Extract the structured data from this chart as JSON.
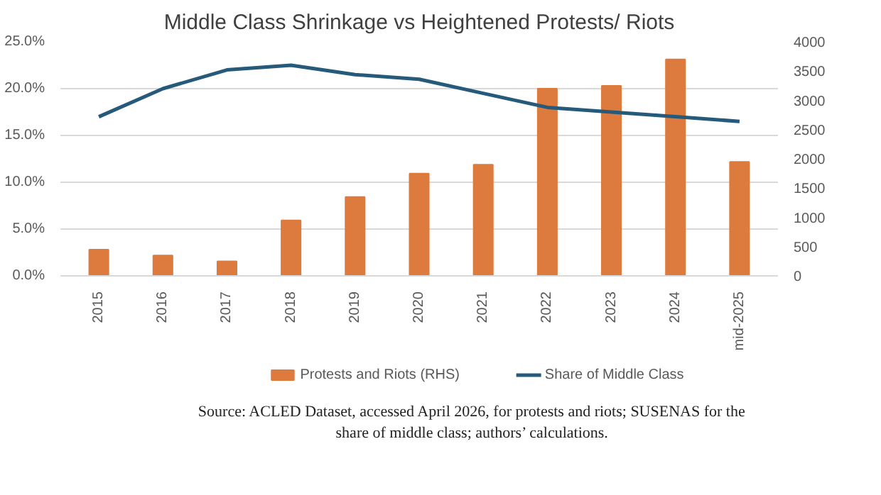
{
  "chart_data": {
    "type": "bar",
    "title": "Middle Class Shrinkage vs Heightened Protests/ Riots",
    "categories": [
      "2015",
      "2016",
      "2017",
      "2018",
      "2019",
      "2020",
      "2021",
      "2022",
      "2023",
      "2024",
      "mid-2025"
    ],
    "series": [
      {
        "name": "Protests and Riots (RHS)",
        "axis": "y2",
        "color": "#dd7a3e",
        "values": [
          450,
          350,
          250,
          950,
          1350,
          1750,
          1900,
          3200,
          3250,
          3700,
          1950
        ]
      },
      {
        "name": "Share of Middle Class",
        "type": "line",
        "color": "#265a7a",
        "values": [
          17,
          20,
          22,
          22.5,
          21.5,
          21,
          19.5,
          18,
          17.5,
          17,
          16.5
        ]
      }
    ],
    "ylim": [
      0,
      25
    ],
    "yticks": [
      {
        "value": 0,
        "label": "0.0%"
      },
      {
        "value": 5,
        "label": "5.0%"
      },
      {
        "value": 10,
        "label": "10.0%"
      },
      {
        "value": 15,
        "label": "15.0%"
      },
      {
        "value": 20,
        "label": "20.0%"
      },
      {
        "value": 25,
        "label": "25.0%"
      }
    ],
    "y2lim": [
      0,
      4000
    ],
    "y2ticks": [
      0,
      500,
      1000,
      1500,
      2000,
      2500,
      3000,
      3500,
      4000
    ],
    "grid": "y",
    "legend": "bottom",
    "annotations": [
      "Source: ACLED Dataset, accessed April 2026, for protests and riots; SUSENAS for the share of middle class; authors’ calculations."
    ]
  }
}
